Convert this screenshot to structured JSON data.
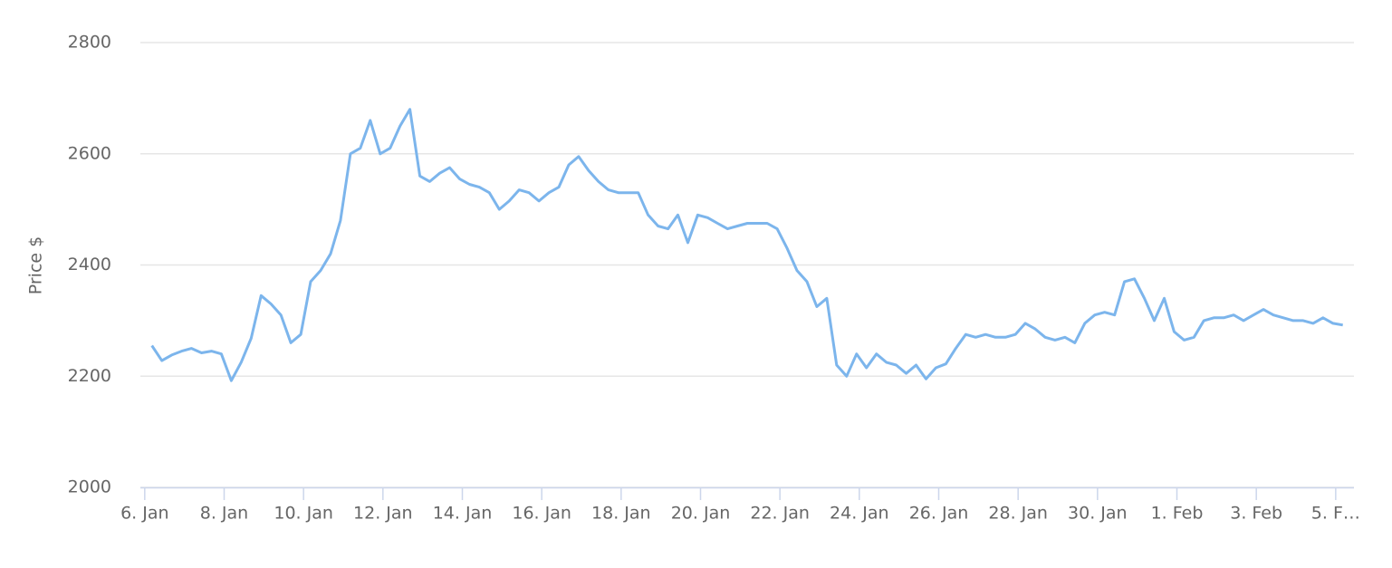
{
  "chart_data": {
    "type": "line",
    "y_label": "Price $",
    "color": "#7cb5ec",
    "grid": true,
    "xlim": [
      -0.11,
      30.46
    ],
    "ylim": [
      2000,
      2800
    ],
    "yticks": [
      2000,
      2200,
      2400,
      2600,
      2800
    ],
    "xticks": [
      {
        "value": 0,
        "label": "6. Jan"
      },
      {
        "value": 2,
        "label": "8. Jan"
      },
      {
        "value": 4,
        "label": "10. Jan"
      },
      {
        "value": 6,
        "label": "12. Jan"
      },
      {
        "value": 8,
        "label": "14. Jan"
      },
      {
        "value": 10,
        "label": "16. Jan"
      },
      {
        "value": 12,
        "label": "18. Jan"
      },
      {
        "value": 14,
        "label": "20. Jan"
      },
      {
        "value": 16,
        "label": "22. Jan"
      },
      {
        "value": 18,
        "label": "24. Jan"
      },
      {
        "value": 20,
        "label": "26. Jan"
      },
      {
        "value": 22,
        "label": "28. Jan"
      },
      {
        "value": 24,
        "label": "30. Jan"
      },
      {
        "value": 26,
        "label": "1. Feb"
      },
      {
        "value": 28,
        "label": "3. Feb"
      },
      {
        "value": 30,
        "label": "5. F…"
      }
    ],
    "x": [
      0.18,
      0.43,
      0.68,
      0.93,
      1.18,
      1.43,
      1.68,
      1.93,
      2.18,
      2.43,
      2.68,
      2.93,
      3.18,
      3.43,
      3.68,
      3.93,
      4.18,
      4.43,
      4.68,
      4.93,
      5.18,
      5.43,
      5.68,
      5.93,
      6.18,
      6.43,
      6.68,
      6.93,
      7.18,
      7.43,
      7.68,
      7.93,
      8.18,
      8.43,
      8.68,
      8.93,
      9.18,
      9.43,
      9.68,
      9.93,
      10.18,
      10.43,
      10.68,
      10.93,
      11.18,
      11.43,
      11.68,
      11.93,
      12.18,
      12.43,
      12.68,
      12.93,
      13.18,
      13.43,
      13.68,
      13.93,
      14.18,
      14.43,
      14.68,
      14.93,
      15.18,
      15.43,
      15.68,
      15.93,
      16.18,
      16.43,
      16.68,
      16.93,
      17.18,
      17.43,
      17.68,
      17.93,
      18.18,
      18.43,
      18.68,
      18.93,
      19.18,
      19.43,
      19.68,
      19.93,
      20.18,
      20.43,
      20.68,
      20.93,
      21.18,
      21.43,
      21.68,
      21.93,
      22.18,
      22.43,
      22.68,
      22.93,
      23.18,
      23.43,
      23.68,
      23.93,
      24.18,
      24.43,
      24.68,
      24.93,
      25.18,
      25.43,
      25.68,
      25.93,
      26.18,
      26.43,
      26.68,
      26.93,
      27.18,
      27.43,
      27.68,
      27.93,
      28.18,
      28.43,
      28.68,
      28.93,
      29.18,
      29.43,
      29.68,
      29.93,
      30.18
    ],
    "values": [
      2255,
      2228,
      2238,
      2245,
      2250,
      2242,
      2245,
      2240,
      2192,
      2225,
      2268,
      2345,
      2330,
      2310,
      2260,
      2275,
      2370,
      2390,
      2420,
      2480,
      2600,
      2610,
      2660,
      2600,
      2610,
      2650,
      2680,
      2560,
      2550,
      2565,
      2575,
      2555,
      2545,
      2540,
      2530,
      2500,
      2515,
      2535,
      2530,
      2515,
      2530,
      2540,
      2580,
      2595,
      2570,
      2550,
      2535,
      2530,
      2530,
      2530,
      2490,
      2470,
      2465,
      2490,
      2440,
      2490,
      2485,
      2475,
      2465,
      2470,
      2475,
      2475,
      2475,
      2465,
      2430,
      2390,
      2370,
      2325,
      2340,
      2220,
      2200,
      2240,
      2215,
      2240,
      2225,
      2220,
      2205,
      2220,
      2195,
      2215,
      2222,
      2250,
      2275,
      2270,
      2275,
      2270,
      2270,
      2275,
      2295,
      2285,
      2270,
      2265,
      2270,
      2260,
      2295,
      2310,
      2315,
      2310,
      2370,
      2375,
      2340,
      2300,
      2340,
      2280,
      2265,
      2270,
      2300,
      2305,
      2305,
      2310,
      2300,
      2310,
      2320,
      2310,
      2305,
      2300,
      2300,
      2295,
      2305,
      2295,
      2292
    ]
  }
}
